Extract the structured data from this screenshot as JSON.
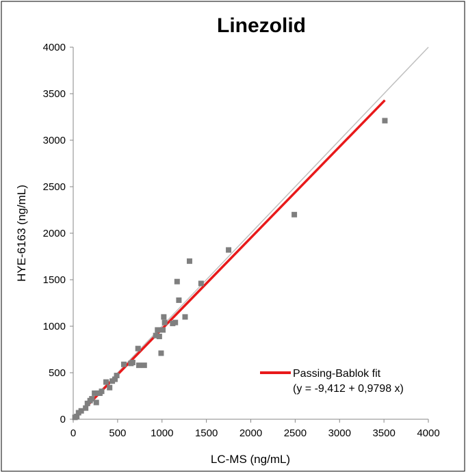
{
  "chart_data": {
    "type": "scatter",
    "title": "Linezolid",
    "xlabel": "LC-MS (ng/mL)",
    "ylabel": "HYE-6163 (ng/mL)",
    "xlim": [
      0,
      4000
    ],
    "ylim": [
      0,
      4000
    ],
    "x_ticks": [
      "0",
      "500",
      "1000",
      "1500",
      "2000",
      "2500",
      "3000",
      "3500",
      "4000"
    ],
    "y_ticks": [
      "0",
      "500",
      "1000",
      "1500",
      "2000",
      "2500",
      "3000",
      "3500",
      "4000"
    ],
    "grid": false,
    "legend_position": "bottom-right",
    "legend": {
      "label": "Passing-Bablok fit",
      "equation": "(y = -9,412 + 0,9798 x)"
    },
    "series": [
      {
        "type": "scatter",
        "color": "#7f7f7f",
        "points": [
          [
            20,
            20
          ],
          [
            40,
            30
          ],
          [
            60,
            70
          ],
          [
            90,
            90
          ],
          [
            140,
            120
          ],
          [
            160,
            170
          ],
          [
            190,
            200
          ],
          [
            210,
            220
          ],
          [
            240,
            280
          ],
          [
            260,
            180
          ],
          [
            280,
            280
          ],
          [
            300,
            280
          ],
          [
            320,
            300
          ],
          [
            370,
            400
          ],
          [
            410,
            340
          ],
          [
            440,
            410
          ],
          [
            470,
            430
          ],
          [
            490,
            470
          ],
          [
            570,
            590
          ],
          [
            650,
            600
          ],
          [
            670,
            610
          ],
          [
            730,
            760
          ],
          [
            740,
            580
          ],
          [
            800,
            580
          ],
          [
            930,
            900
          ],
          [
            950,
            960
          ],
          [
            970,
            890
          ],
          [
            990,
            710
          ],
          [
            1010,
            960
          ],
          [
            1020,
            1100
          ],
          [
            1030,
            1040
          ],
          [
            1120,
            1030
          ],
          [
            1150,
            1040
          ],
          [
            1170,
            1480
          ],
          [
            1190,
            1280
          ],
          [
            1260,
            1100
          ],
          [
            1310,
            1700
          ],
          [
            1440,
            1460
          ],
          [
            1750,
            1820
          ],
          [
            2490,
            2200
          ],
          [
            3510,
            3210
          ]
        ]
      },
      {
        "name": "Passing-Bablok fit",
        "type": "line",
        "color": "#e8191a",
        "x": [
          20,
          3510
        ],
        "y": [
          10.2,
          3429.7
        ]
      },
      {
        "type": "line",
        "color": "#bfbfbf",
        "x": [
          0,
          4000
        ],
        "y": [
          0,
          4000
        ]
      }
    ]
  }
}
